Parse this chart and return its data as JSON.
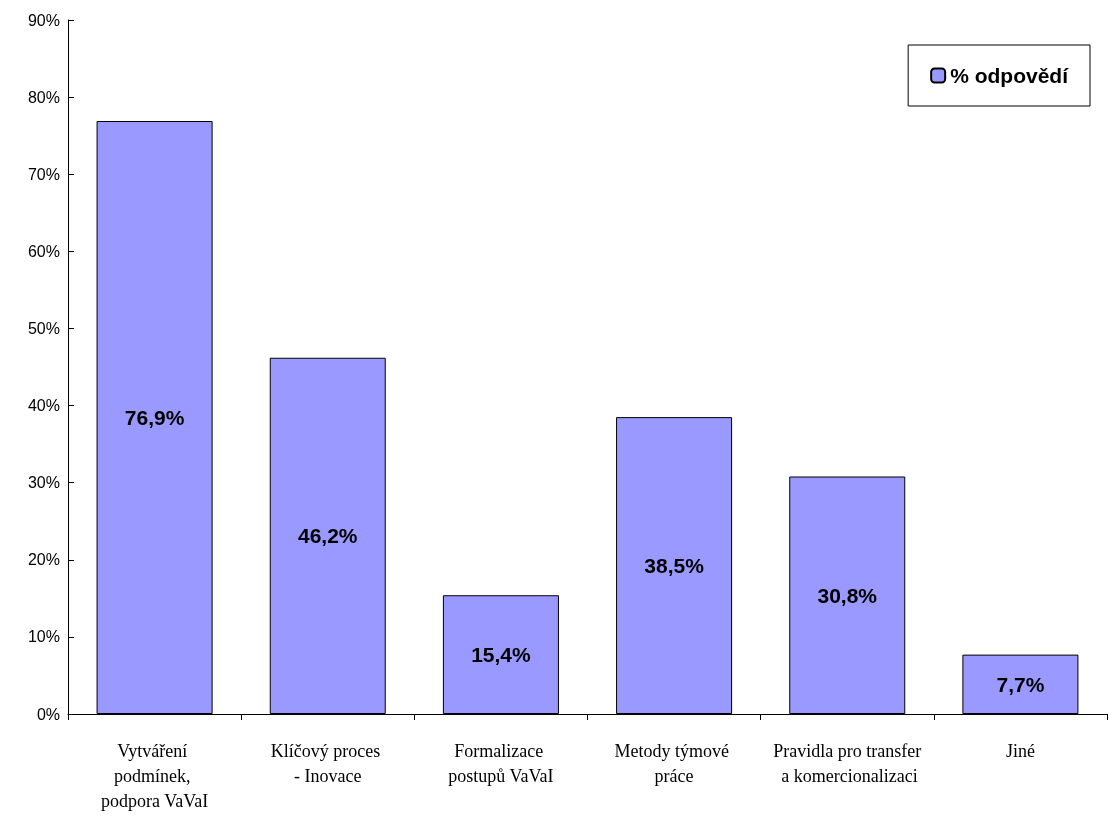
{
  "chart_data": {
    "type": "bar",
    "categories": [
      "Vytváření podmínek, podpora VaVaI",
      "Klíčový proces - Inovace",
      "Formalizace postupů VaVaI",
      "Metody týmové práce",
      "Pravidla pro transfer a komercionalizaci",
      "Jiné"
    ],
    "series": [
      {
        "name": "% odpovědí",
        "color": "#9999ff",
        "values": [
          76.9,
          46.2,
          15.4,
          38.5,
          30.8,
          7.7
        ],
        "value_labels": [
          "76,9%",
          "46,2%",
          "15,4%",
          "38,5%",
          "30,8%",
          "7,7%"
        ]
      }
    ],
    "ylim": [
      0,
      90
    ],
    "yticks": [
      {
        "value": 0,
        "label": "0%"
      },
      {
        "value": 10,
        "label": "10%"
      },
      {
        "value": 20,
        "label": "20%"
      },
      {
        "value": 30,
        "label": "30%"
      },
      {
        "value": 40,
        "label": "40%"
      },
      {
        "value": 50,
        "label": "50%"
      },
      {
        "value": 60,
        "label": "60%"
      },
      {
        "value": 70,
        "label": "70%"
      },
      {
        "value": 80,
        "label": "80%"
      },
      {
        "value": 90,
        "label": "90%"
      }
    ],
    "grid": false,
    "legend": "top right"
  }
}
